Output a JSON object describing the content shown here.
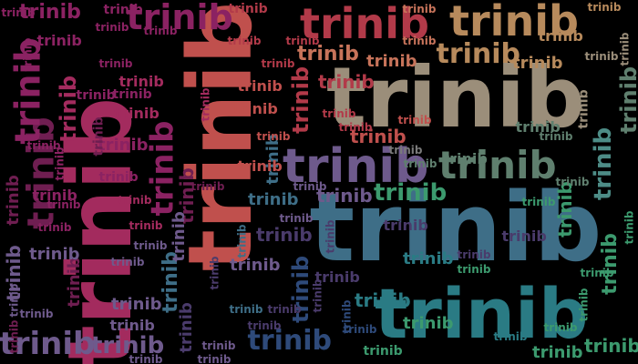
{
  "word_cloud": {
    "word": "trinib",
    "background": "#000000",
    "palette": [
      "#6f1e51",
      "#8b2262",
      "#a32b5e",
      "#b23a49",
      "#c0504d",
      "#c7735a",
      "#b78a5c",
      "#9b8e7a",
      "#7a7a7a",
      "#5f7f6e",
      "#4d8c86",
      "#3e6e87",
      "#6e5a8c",
      "#4a3b6b",
      "#2e4a7a",
      "#2a7b84",
      "#3c9a6e",
      "#1f5f6e"
    ]
  }
}
